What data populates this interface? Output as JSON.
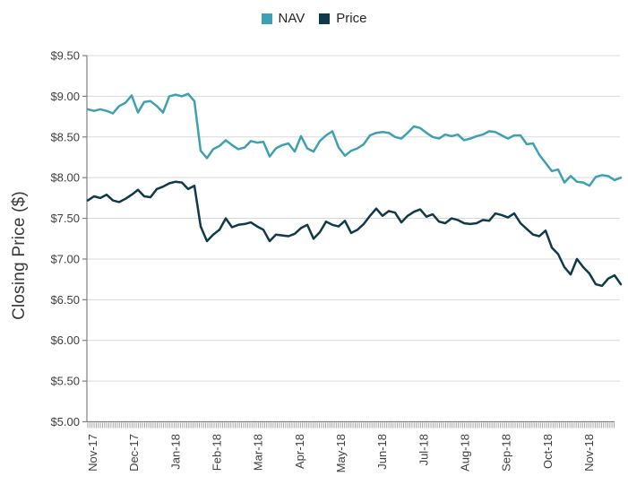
{
  "legend": {
    "items": [
      {
        "label": "NAV",
        "swatch_color": "#3EA1B2"
      },
      {
        "label": "Price",
        "swatch_color": "#0E3A49"
      }
    ]
  },
  "y_axis": {
    "title": "Closing Price ($)",
    "tick_labels": [
      "$9.50",
      "$9.00",
      "$8.50",
      "$8.00",
      "$7.50",
      "$7.00",
      "$6.50",
      "$6.00",
      "$5.50",
      "$5.00"
    ],
    "min": 5.0,
    "max": 9.5,
    "step": 0.5
  },
  "x_axis": {
    "tick_labels": [
      "Nov-17",
      "Dec-17",
      "Jan-18",
      "Feb-18",
      "Mar-18",
      "Apr-18",
      "May-18",
      "Jun-18",
      "Jul-18",
      "Aug-18",
      "Sep-18",
      "Oct-18",
      "Nov-18"
    ]
  },
  "chart_data": {
    "type": "line",
    "title": "",
    "xlabel": "",
    "ylabel": "Closing Price ($)",
    "ylim": [
      5.0,
      9.5
    ],
    "ytick_step": 0.5,
    "grid": "horizontal",
    "legend_position": "top-center",
    "x_description": "Trading dates from Nov-2017 to mid Nov-2018, 86 evenly spaced samples (~weekly)",
    "x_tick_labels": [
      "Nov-17",
      "Dec-17",
      "Jan-18",
      "Feb-18",
      "Mar-18",
      "Apr-18",
      "May-18",
      "Jun-18",
      "Jul-18",
      "Aug-18",
      "Sep-18",
      "Oct-18",
      "Nov-18"
    ],
    "series": [
      {
        "name": "NAV",
        "color": "#3EA1B2",
        "values": [
          8.84,
          8.82,
          8.84,
          8.82,
          8.79,
          8.88,
          8.92,
          9.01,
          8.8,
          8.93,
          8.94,
          8.88,
          8.8,
          9.0,
          9.02,
          9.0,
          9.03,
          8.94,
          8.33,
          8.24,
          8.35,
          8.39,
          8.46,
          8.4,
          8.35,
          8.37,
          8.45,
          8.43,
          8.44,
          8.26,
          8.36,
          8.4,
          8.42,
          8.32,
          8.51,
          8.36,
          8.32,
          8.45,
          8.52,
          8.57,
          8.37,
          8.27,
          8.33,
          8.36,
          8.41,
          8.52,
          8.55,
          8.56,
          8.55,
          8.5,
          8.48,
          8.55,
          8.63,
          8.61,
          8.55,
          8.5,
          8.48,
          8.53,
          8.51,
          8.53,
          8.46,
          8.48,
          8.51,
          8.53,
          8.57,
          8.56,
          8.52,
          8.48,
          8.52,
          8.52,
          8.41,
          8.42,
          8.28,
          8.18,
          8.08,
          8.1,
          7.94,
          8.02,
          7.95,
          7.94,
          7.9,
          8.01,
          8.03,
          8.02,
          7.97,
          8.0
        ]
      },
      {
        "name": "Price",
        "color": "#0E3A49",
        "values": [
          7.72,
          7.77,
          7.75,
          7.79,
          7.72,
          7.7,
          7.74,
          7.79,
          7.85,
          7.77,
          7.76,
          7.86,
          7.89,
          7.93,
          7.95,
          7.94,
          7.86,
          7.9,
          7.4,
          7.22,
          7.3,
          7.36,
          7.5,
          7.39,
          7.42,
          7.43,
          7.45,
          7.4,
          7.36,
          7.22,
          7.3,
          7.29,
          7.28,
          7.31,
          7.38,
          7.42,
          7.25,
          7.33,
          7.46,
          7.42,
          7.4,
          7.47,
          7.32,
          7.36,
          7.43,
          7.53,
          7.62,
          7.53,
          7.59,
          7.57,
          7.45,
          7.53,
          7.58,
          7.61,
          7.52,
          7.55,
          7.46,
          7.44,
          7.5,
          7.48,
          7.44,
          7.43,
          7.44,
          7.48,
          7.47,
          7.56,
          7.54,
          7.51,
          7.56,
          7.44,
          7.37,
          7.3,
          7.28,
          7.35,
          7.14,
          7.06,
          6.9,
          6.81,
          7.0,
          6.9,
          6.82,
          6.69,
          6.67,
          6.76,
          6.8,
          6.69
        ]
      }
    ]
  },
  "style": {
    "grid_color": "#D9D9D9",
    "axis_color": "#808080",
    "minor_tick_color": "#A6A6A6",
    "tick_label_color": "#404040"
  }
}
